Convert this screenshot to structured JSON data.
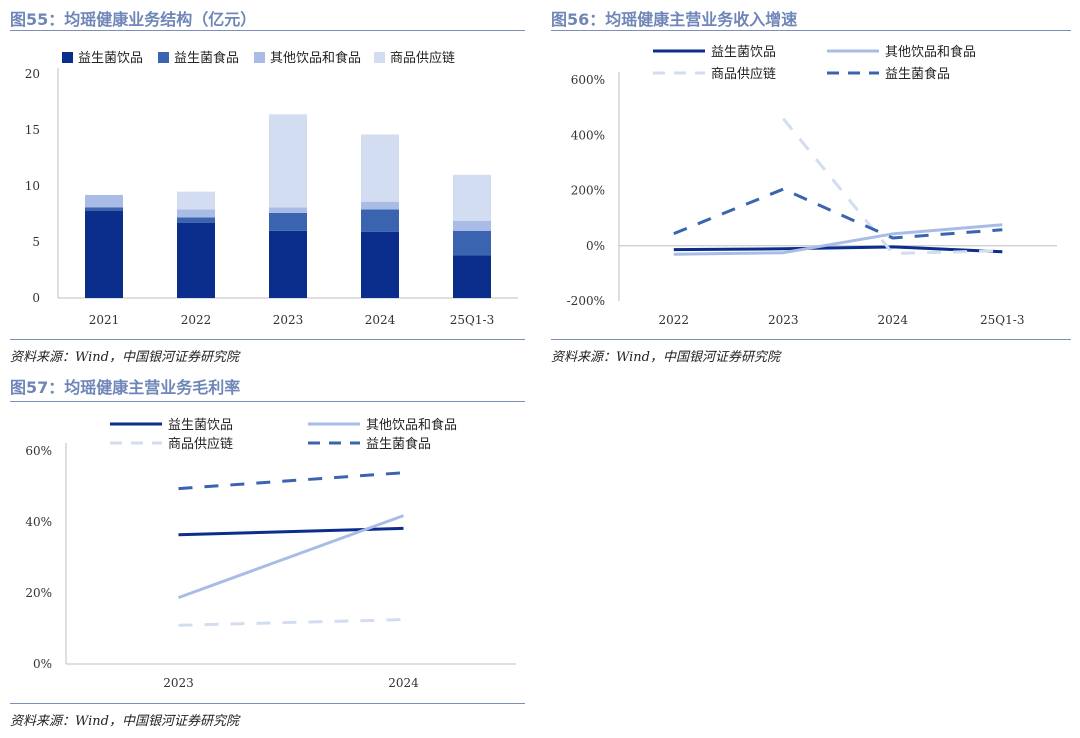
{
  "chart_data": [
    {
      "type": "bar",
      "stacked": true,
      "title": "图55：均瑶健康业务结构（亿元）",
      "source": "资料来源：Wind，中国银河证券研究院",
      "categories": [
        "2021",
        "2022",
        "2023",
        "2024",
        "25Q1-3"
      ],
      "ylim": [
        0,
        20
      ],
      "yticks": [
        "0",
        "5",
        "10",
        "15",
        "20"
      ],
      "legend_position": "top",
      "series": [
        {
          "name": "益生菌饮品",
          "color": "#0b2d8c",
          "values": [
            7.8,
            6.7,
            6.0,
            5.9,
            3.8
          ]
        },
        {
          "name": "益生菌食品",
          "color": "#3a63b0",
          "values": [
            0.3,
            0.5,
            1.6,
            2.0,
            2.2
          ]
        },
        {
          "name": "其他饮品和食品",
          "color": "#a9bce6",
          "values": [
            1.1,
            0.7,
            0.5,
            0.7,
            0.9
          ]
        },
        {
          "name": "商品供应链",
          "color": "#d3ddf1",
          "values": [
            0.0,
            1.6,
            8.3,
            6.0,
            4.1
          ]
        }
      ]
    },
    {
      "type": "line",
      "title": "图56：均瑶健康主营业务收入增速",
      "source": "资料来源：Wind，中国银河证券研究院",
      "categories": [
        "2022",
        "2023",
        "2024",
        "25Q1-3"
      ],
      "ylim": [
        -200,
        600
      ],
      "yticks": [
        "-200%",
        "0%",
        "200%",
        "400%",
        "600%"
      ],
      "legend_position": "top",
      "series": [
        {
          "name": "益生菌饮品",
          "color": "#0b2d8c",
          "dash": "solid",
          "values": [
            -14,
            -11,
            -4,
            -22
          ]
        },
        {
          "name": "其他饮品和食品",
          "color": "#a9bce6",
          "dash": "solid",
          "values": [
            -31,
            -25,
            43,
            76
          ]
        },
        {
          "name": "商品供应链",
          "color": "#d3ddf1",
          "dash": "dashed",
          "values": [
            null,
            460,
            -28,
            -18
          ]
        },
        {
          "name": "益生菌食品",
          "color": "#3a63b0",
          "dash": "dashed",
          "values": [
            44,
            205,
            28,
            58
          ]
        }
      ]
    },
    {
      "type": "line",
      "title": "图57：均瑶健康主营业务毛利率",
      "source": "资料来源：Wind，中国银河证券研究院",
      "categories": [
        "2023",
        "2024"
      ],
      "ylim": [
        0,
        60
      ],
      "yticks": [
        "0%",
        "20%",
        "40%",
        "60%"
      ],
      "legend_position": "top",
      "series": [
        {
          "name": "益生菌饮品",
          "color": "#0b2d8c",
          "dash": "solid",
          "values": [
            36.4,
            38.2
          ]
        },
        {
          "name": "其他饮品和食品",
          "color": "#a9bce6",
          "dash": "solid",
          "values": [
            18.7,
            41.8
          ]
        },
        {
          "name": "商品供应链",
          "color": "#d3ddf1",
          "dash": "dashed",
          "values": [
            10.9,
            12.5
          ]
        },
        {
          "name": "益生菌食品",
          "color": "#3a63b0",
          "dash": "dashed",
          "values": [
            49.4,
            53.9
          ]
        }
      ]
    }
  ]
}
